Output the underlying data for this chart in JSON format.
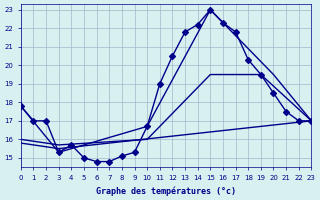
{
  "title": "Graphe des températures (°c)",
  "bg_color": "#d8f0f0",
  "grid_color": "#a0b8c8",
  "line_color": "#00008B",
  "x_min": 0,
  "x_max": 23,
  "y_min": 15,
  "y_max": 23,
  "series1_x": [
    0,
    1,
    2,
    3,
    4,
    5,
    6,
    7,
    8,
    9,
    10,
    11,
    12,
    13,
    14,
    15,
    16,
    17,
    18,
    19,
    20,
    21,
    22,
    23
  ],
  "series1_y": [
    17.8,
    17.0,
    17.0,
    15.3,
    15.7,
    15.0,
    14.8,
    14.8,
    15.1,
    15.3,
    16.7,
    19.0,
    20.5,
    21.8,
    22.2,
    23.0,
    22.3,
    21.8,
    20.3,
    19.5,
    18.5,
    17.5,
    17.0,
    17.0
  ],
  "series2_x": [
    0,
    3,
    10,
    15,
    20,
    23
  ],
  "series2_y": [
    17.8,
    15.3,
    16.7,
    23.0,
    19.5,
    17.0
  ],
  "series3_x": [
    0,
    3,
    10,
    15,
    19,
    23
  ],
  "series3_y": [
    16.0,
    15.7,
    16.0,
    19.5,
    19.5,
    17.0
  ],
  "series4_x": [
    0,
    3,
    23
  ],
  "series4_y": [
    15.8,
    15.5,
    17.0
  ]
}
